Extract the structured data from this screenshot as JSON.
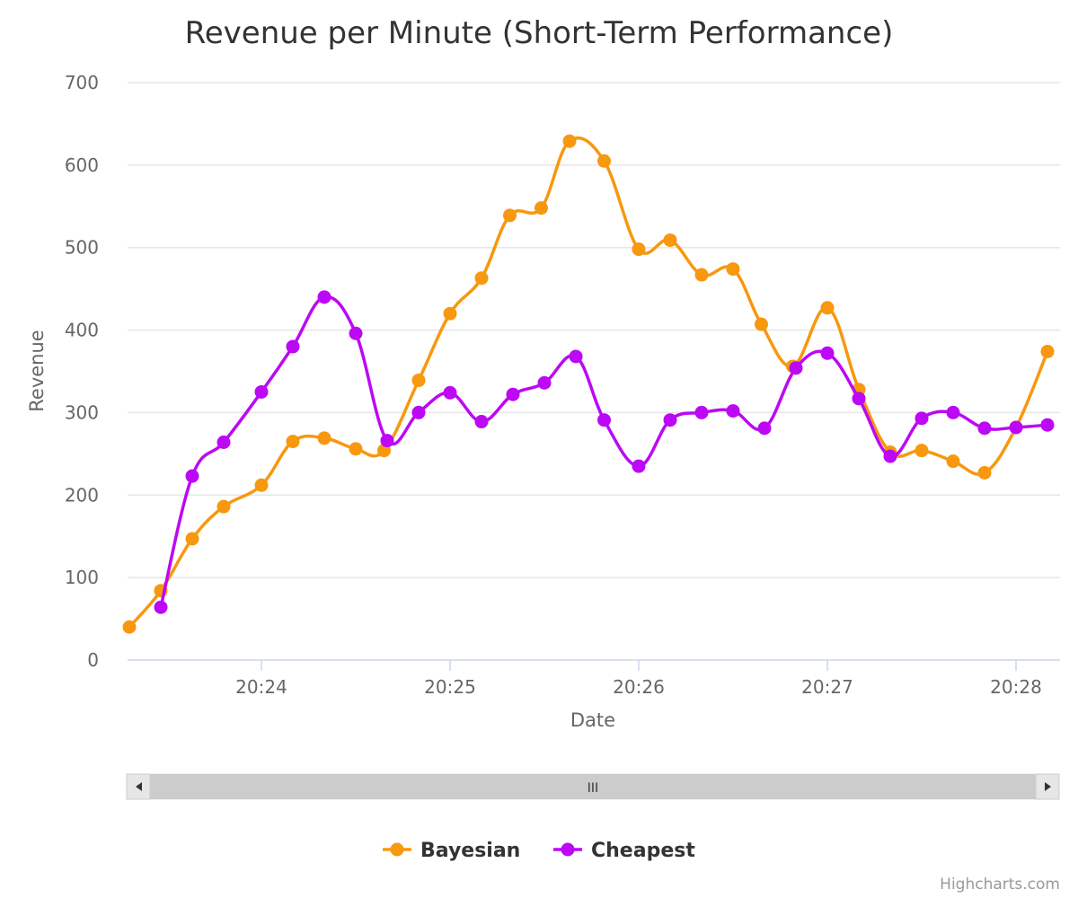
{
  "chart_data": {
    "type": "line",
    "title": "Revenue per Minute (Short-Term Performance)",
    "xlabel": "Date",
    "ylabel": "Revenue",
    "ylim": [
      0,
      700
    ],
    "y_ticks": [
      0,
      100,
      200,
      300,
      400,
      500,
      600,
      700
    ],
    "x_ticks": [
      {
        "time": "20:24",
        "label": "20:24"
      },
      {
        "time": "20:25",
        "label": "20:25"
      },
      {
        "time": "20:26",
        "label": "20:26"
      },
      {
        "time": "20:27",
        "label": "20:27"
      },
      {
        "time": "20:28",
        "label": "20:28"
      }
    ],
    "xlim": [
      "20:23:18",
      "20:28:13"
    ],
    "grid": true,
    "legend": "bottom-center",
    "curve": "smooth",
    "series": [
      {
        "name": "Bayesian",
        "color": "#f7980f",
        "points": [
          [
            "20:23:18",
            40
          ],
          [
            "20:23:28",
            84
          ],
          [
            "20:23:38",
            147
          ],
          [
            "20:23:48",
            186
          ],
          [
            "20:24:00",
            212
          ],
          [
            "20:24:10",
            265
          ],
          [
            "20:24:20",
            269
          ],
          [
            "20:24:30",
            256
          ],
          [
            "20:24:39",
            254
          ],
          [
            "20:24:50",
            339
          ],
          [
            "20:25:00",
            420
          ],
          [
            "20:25:10",
            463
          ],
          [
            "20:25:19",
            539
          ],
          [
            "20:25:29",
            548
          ],
          [
            "20:25:38",
            629
          ],
          [
            "20:25:49",
            605
          ],
          [
            "20:26:00",
            498
          ],
          [
            "20:26:10",
            509
          ],
          [
            "20:26:20",
            467
          ],
          [
            "20:26:30",
            474
          ],
          [
            "20:26:39",
            407
          ],
          [
            "20:26:49",
            356
          ],
          [
            "20:27:00",
            427
          ],
          [
            "20:27:10",
            328
          ],
          [
            "20:27:20",
            252
          ],
          [
            "20:27:30",
            254
          ],
          [
            "20:27:40",
            241
          ],
          [
            "20:27:50",
            227
          ],
          [
            "20:28:00",
            282
          ],
          [
            "20:28:10",
            374
          ]
        ]
      },
      {
        "name": "Cheapest",
        "color": "#bc08f4",
        "points": [
          [
            "20:23:28",
            64
          ],
          [
            "20:23:38",
            223
          ],
          [
            "20:23:48",
            264
          ],
          [
            "20:24:00",
            325
          ],
          [
            "20:24:10",
            380
          ],
          [
            "20:24:20",
            440
          ],
          [
            "20:24:30",
            396
          ],
          [
            "20:24:40",
            266
          ],
          [
            "20:24:50",
            300
          ],
          [
            "20:25:00",
            324
          ],
          [
            "20:25:10",
            289
          ],
          [
            "20:25:20",
            322
          ],
          [
            "20:25:30",
            336
          ],
          [
            "20:25:40",
            368
          ],
          [
            "20:25:49",
            291
          ],
          [
            "20:26:00",
            235
          ],
          [
            "20:26:10",
            291
          ],
          [
            "20:26:20",
            300
          ],
          [
            "20:26:30",
            302
          ],
          [
            "20:26:40",
            281
          ],
          [
            "20:26:50",
            354
          ],
          [
            "20:27:00",
            372
          ],
          [
            "20:27:10",
            317
          ],
          [
            "20:27:20",
            247
          ],
          [
            "20:27:30",
            293
          ],
          [
            "20:27:40",
            300
          ],
          [
            "20:27:50",
            281
          ],
          [
            "20:28:00",
            282
          ],
          [
            "20:28:10",
            285
          ]
        ]
      }
    ]
  },
  "navigator": {
    "thumb_grip": "III",
    "left_arrow_icon": "triangle-left",
    "right_arrow_icon": "triangle-right"
  },
  "credits": "Highcharts.com",
  "colors": {
    "grid": "#e6e6e6",
    "axis_line": "#ccd6eb",
    "scrollbar_track": "#f2f2f2",
    "scrollbar_thumb": "#cccccc",
    "scrollbar_button": "#e6e6e6"
  }
}
